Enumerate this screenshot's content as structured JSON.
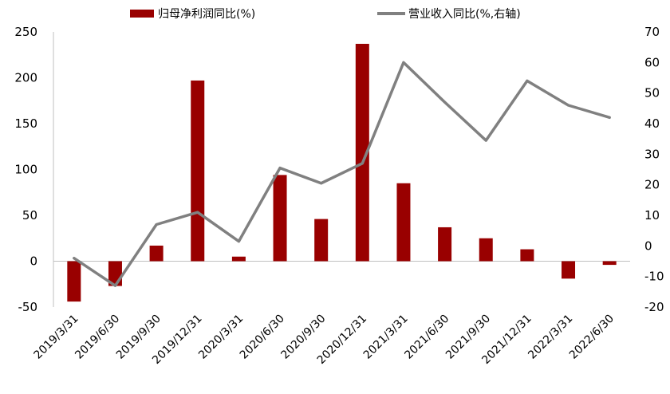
{
  "chart_data": {
    "type": "bar",
    "categories": [
      "2019/3/31",
      "2019/6/30",
      "2019/9/30",
      "2019/12/31",
      "2020/3/31",
      "2020/6/30",
      "2020/9/30",
      "2020/12/31",
      "2021/3/31",
      "2021/6/30",
      "2021/9/30",
      "2021/12/31",
      "2022/3/31",
      "2022/6/30"
    ],
    "series": [
      {
        "name": "归母净利润同比(%)",
        "type": "bar",
        "axis": "left",
        "color": "#990000",
        "values": [
          -44,
          -27,
          17,
          197,
          5,
          94,
          46,
          237,
          85,
          37,
          25,
          13,
          -19,
          -4
        ]
      },
      {
        "name": "营业收入同比(%,右轴)",
        "type": "line",
        "axis": "right",
        "color": "#808080",
        "values": [
          -4,
          -13,
          7,
          11,
          1.5,
          25.5,
          20.5,
          27,
          60,
          47,
          34.5,
          54,
          46,
          42
        ]
      }
    ],
    "y_left": {
      "ylim": [
        -50,
        250
      ],
      "ticks": [
        -50,
        0,
        50,
        100,
        150,
        200,
        250
      ]
    },
    "y_right": {
      "ylim": [
        -20,
        70
      ],
      "ticks": [
        -20,
        -10,
        0,
        10,
        20,
        30,
        40,
        50,
        60,
        70
      ]
    },
    "legend_position": "top",
    "grid": false
  }
}
